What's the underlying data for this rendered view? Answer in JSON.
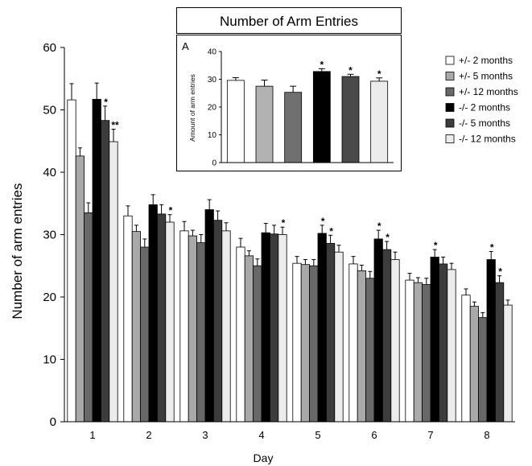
{
  "chart_data": [
    {
      "type": "bar",
      "title": "",
      "xlabel": "Day",
      "ylabel": "Number of arm entries",
      "ylim": [
        0,
        60
      ],
      "yticks": [
        0,
        10,
        20,
        30,
        40,
        50,
        60
      ],
      "categories": [
        "1",
        "2",
        "3",
        "4",
        "5",
        "6",
        "7",
        "8"
      ],
      "series": [
        {
          "name": "+/- 2 months",
          "color": "#ffffff",
          "values": [
            51.6,
            33.0,
            30.6,
            28.0,
            25.4,
            25.3,
            22.7,
            20.3
          ],
          "errors": [
            2.6,
            1.6,
            1.5,
            1.4,
            1.1,
            1.2,
            1.1,
            1.0
          ]
        },
        {
          "name": "+/- 5 months",
          "color": "#a9a9a9",
          "values": [
            42.6,
            30.5,
            29.8,
            26.6,
            25.2,
            24.2,
            22.3,
            18.5
          ],
          "errors": [
            1.3,
            1.0,
            0.9,
            0.8,
            0.8,
            0.9,
            0.8,
            0.7
          ]
        },
        {
          "name": "+/- 12 months",
          "color": "#686868",
          "values": [
            33.5,
            28.0,
            28.7,
            25.0,
            25.0,
            23.0,
            22.0,
            16.7
          ],
          "errors": [
            1.6,
            1.3,
            1.3,
            1.1,
            1.0,
            1.1,
            1.0,
            0.8
          ]
        },
        {
          "name": "-/- 2 months",
          "color": "#000000",
          "values": [
            51.7,
            34.8,
            34.0,
            30.3,
            30.2,
            29.3,
            26.4,
            26.0
          ],
          "errors": [
            2.6,
            1.6,
            1.6,
            1.5,
            1.3,
            1.4,
            1.2,
            1.3
          ]
        },
        {
          "name": "-/- 5 months",
          "color": "#3c3c3c",
          "values": [
            48.3,
            33.3,
            32.3,
            30.1,
            28.6,
            27.6,
            25.3,
            22.3
          ],
          "errors": [
            2.3,
            1.5,
            1.5,
            1.4,
            1.3,
            1.3,
            1.1,
            1.1
          ]
        },
        {
          "name": "-/- 12 months",
          "color": "#ececec",
          "values": [
            44.9,
            32.0,
            30.6,
            30.0,
            27.2,
            26.0,
            24.4,
            18.7
          ],
          "errors": [
            2.0,
            1.2,
            1.3,
            1.2,
            1.1,
            1.2,
            1.0,
            0.8
          ]
        }
      ],
      "annotations": [
        {
          "category": "1",
          "series": "-/- 5 months",
          "text": "*"
        },
        {
          "category": "1",
          "series": "-/- 12 months",
          "text": "**"
        },
        {
          "category": "2",
          "series": "-/- 12 months",
          "text": "*"
        },
        {
          "category": "4",
          "series": "-/- 12 months",
          "text": "*"
        },
        {
          "category": "5",
          "series": "-/- 2 months",
          "text": "*"
        },
        {
          "category": "5",
          "series": "-/- 5 months",
          "text": "*"
        },
        {
          "category": "6",
          "series": "-/- 2 months",
          "text": "*"
        },
        {
          "category": "6",
          "series": "-/- 5 months",
          "text": "*"
        },
        {
          "category": "7",
          "series": "-/- 2 months",
          "text": "*"
        },
        {
          "category": "8",
          "series": "-/- 2 months",
          "text": "*"
        },
        {
          "category": "8",
          "series": "-/- 5 months",
          "text": "*"
        }
      ],
      "legend_position": "top-right",
      "grid": false
    },
    {
      "type": "bar",
      "title": "Number of Arm Entries",
      "panel_label": "A",
      "xlabel": "",
      "ylabel": "Amount of arm entries",
      "ylim": [
        0,
        40
      ],
      "yticks": [
        0,
        10,
        20,
        30,
        40
      ],
      "categories": [
        "+/- 2 months",
        "+/- 5 months",
        "+/- 12 months",
        "-/- 2 months",
        "-/- 5 months",
        "-/- 12 months"
      ],
      "values": [
        29.6,
        27.5,
        25.3,
        32.8,
        31.0,
        29.3
      ],
      "errors": [
        1.0,
        2.2,
        2.2,
        1.0,
        0.8,
        1.2
      ],
      "colors": [
        "#ffffff",
        "#b2b2b2",
        "#707070",
        "#000000",
        "#4a4a4a",
        "#ececec"
      ],
      "annotations": [
        {
          "category": "-/- 2 months",
          "text": "*"
        },
        {
          "category": "-/- 5 months",
          "text": "*"
        },
        {
          "category": "-/- 12 months",
          "text": "*"
        }
      ],
      "grid": false
    }
  ]
}
